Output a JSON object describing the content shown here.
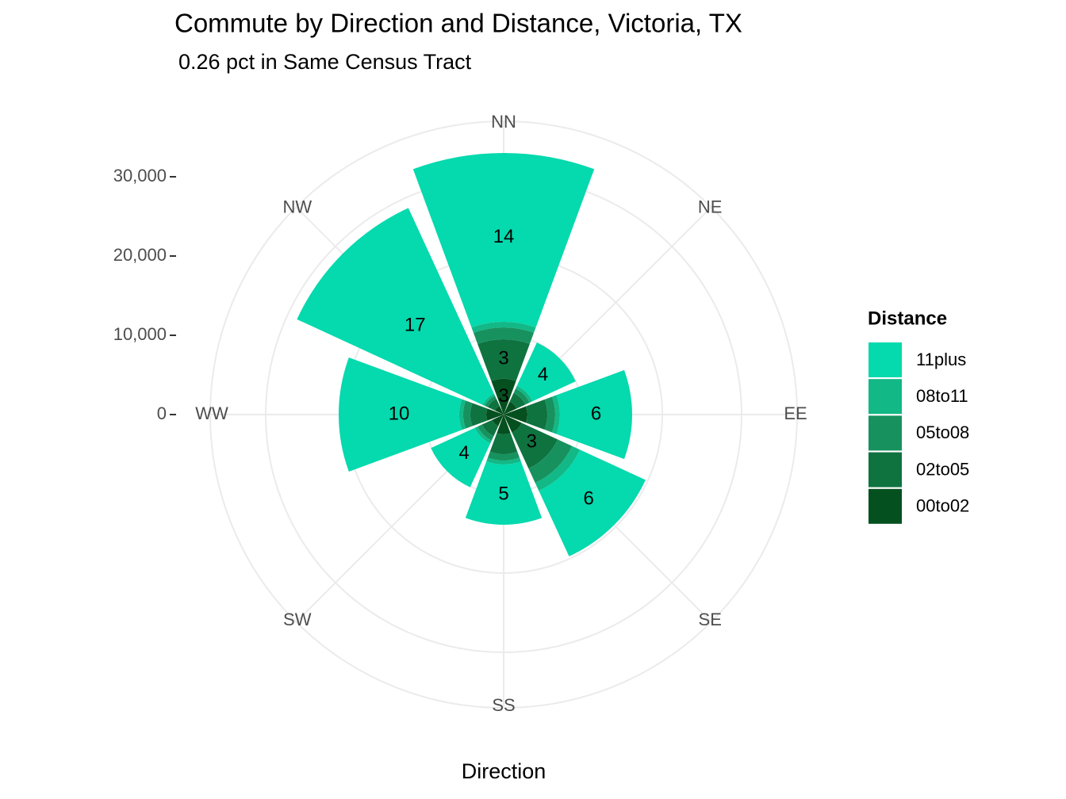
{
  "chart_data": {
    "type": "polar_stacked_bar",
    "title": "Commute by Direction and Distance, Victoria, TX",
    "subtitle": "0.26 pct in Same Census Tract",
    "x_label": "Direction",
    "legend_title": "Distance",
    "categories": [
      "NN",
      "NE",
      "EE",
      "SE",
      "SS",
      "SW",
      "WW",
      "NW"
    ],
    "series": [
      {
        "name": "11plus",
        "color": "#05d9ae",
        "values": [
          21300,
          6000,
          9100,
          9100,
          7600,
          6100,
          15200,
          25800
        ],
        "percent_labels": [
          "14",
          "4",
          "6",
          "6",
          "5",
          "4",
          "10",
          "17"
        ]
      },
      {
        "name": "08to11",
        "color": "#12b886",
        "values": [
          700,
          400,
          600,
          1100,
          500,
          400,
          500,
          300
        ],
        "percent_labels": [
          null,
          null,
          null,
          null,
          null,
          null,
          null,
          null
        ]
      },
      {
        "name": "05to08",
        "color": "#17925f",
        "values": [
          1500,
          600,
          1000,
          2000,
          800,
          600,
          900,
          400
        ],
        "percent_labels": [
          null,
          null,
          null,
          null,
          null,
          null,
          null,
          null
        ]
      },
      {
        "name": "02to05",
        "color": "#0f7340",
        "values": [
          5000,
          1200,
          2500,
          5000,
          2500,
          1400,
          2000,
          1000
        ],
        "percent_labels": [
          "3",
          null,
          null,
          "3",
          null,
          null,
          null,
          null
        ]
      },
      {
        "name": "00to02",
        "color": "#05501f",
        "values": [
          4500,
          1800,
          3000,
          2500,
          2500,
          1600,
          2200,
          1200
        ],
        "percent_labels": [
          "3",
          null,
          null,
          null,
          null,
          null,
          null,
          null
        ]
      }
    ],
    "ylim": [
      0,
      37000
    ],
    "yticks": [
      0,
      {
        "value": 10000,
        "label": "10,000"
      },
      {
        "value": 20000,
        "label": "20,000"
      },
      {
        "value": 30000,
        "label": "30,000"
      }
    ],
    "grid": true
  }
}
